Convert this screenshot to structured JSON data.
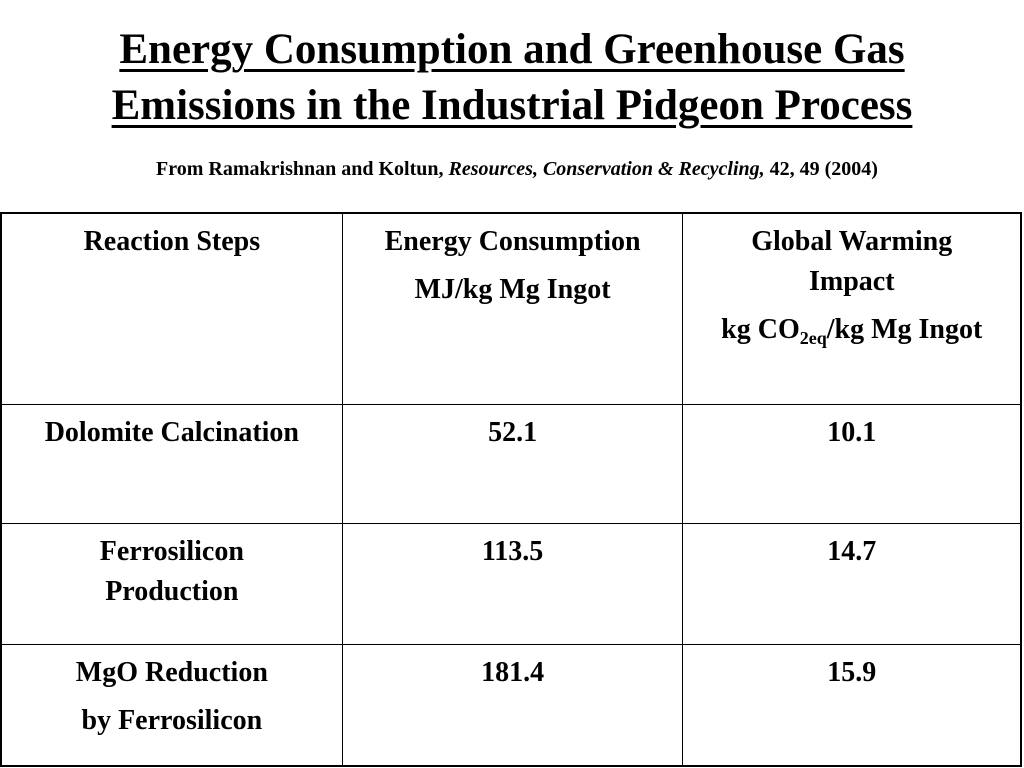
{
  "title": {
    "line1": "Energy Consumption and Greenhouse Gas",
    "line2": "Emissions in the Industrial Pidgeon Process"
  },
  "citation": {
    "prefix": "From Ramakrishnan and Koltun,",
    "journal": "Resources, Conservation & Recycling,",
    "suffix": "42, 49 (2004)"
  },
  "table": {
    "headers": {
      "col1": "Reaction Steps",
      "col2_line1": "Energy Consumption",
      "col2_line2": "MJ/kg Mg Ingot",
      "col3_line1": "Global Warming",
      "col3_line2": "Impact",
      "col3_unit_pre": "kg CO",
      "col3_unit_sub": "2eq",
      "col3_unit_post": "/kg Mg Ingot"
    },
    "rows": [
      {
        "step_line1": "Dolomite Calcination",
        "step_line2": "",
        "energy": "52.1",
        "gwi": "10.1"
      },
      {
        "step_line1": "Ferrosilicon",
        "step_line2": "Production",
        "energy": "113.5",
        "gwi": "14.7"
      },
      {
        "step_line1": "MgO Reduction",
        "step_line2": "by Ferrosilicon",
        "energy": "181.4",
        "gwi": "15.9"
      }
    ]
  }
}
